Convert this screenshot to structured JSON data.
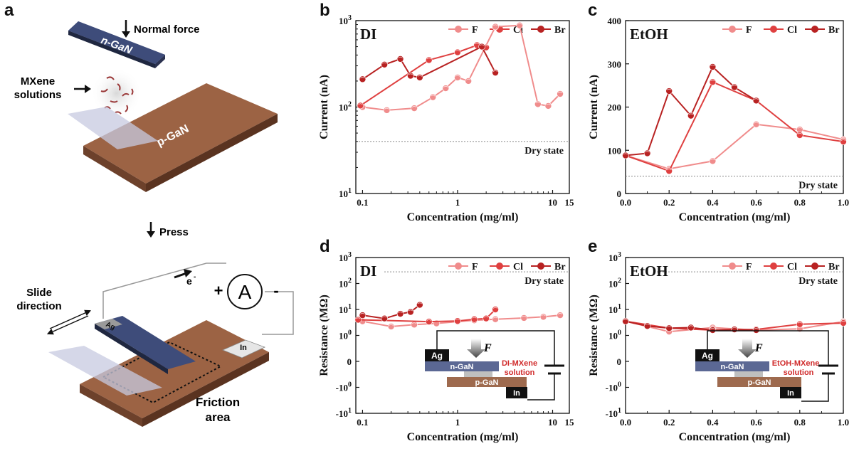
{
  "panel_labels": [
    "a",
    "b",
    "c",
    "d",
    "e"
  ],
  "schematic": {
    "normal_force": "Normal force",
    "mxene_solutions": [
      "MXene",
      "solutions"
    ],
    "n_gan": "n-GaN",
    "p_gan": "p-GaN",
    "press": "Press",
    "slide_direction": [
      "Slide",
      "direction"
    ],
    "electron": "e",
    "electron_sup": "-",
    "ammeter": "A",
    "plus": "+",
    "minus": "-",
    "ag": "Ag",
    "in": "In",
    "friction_area": [
      "Friction",
      "area"
    ]
  },
  "insets": {
    "d": {
      "ag": "Ag",
      "f": "F",
      "n_gan": "n-GaN",
      "p_gan": "p-GaN",
      "in": "In",
      "solution": [
        "DI-MXene",
        "solution"
      ]
    },
    "e": {
      "ag": "Ag",
      "f": "F",
      "n_gan": "n-GaN",
      "p_gan": "p-GaN",
      "in": "In",
      "solution": [
        "EtOH-MXene",
        "solution"
      ]
    }
  },
  "colors": {
    "F": "#f08c8c",
    "Cl": "#df4040",
    "Br": "#b82222",
    "dry": "#888888"
  },
  "chart_data": [
    {
      "panel": "b",
      "type": "line",
      "title": "DI",
      "xlabel": "Concentration (mg/ml)",
      "ylabel": "Current (nA)",
      "xscale": "log",
      "yscale": "log",
      "xlim": [
        0.085,
        15
      ],
      "ylim": [
        10,
        1000
      ],
      "xticks": [
        "0.1",
        "1",
        "10",
        "15"
      ],
      "yticks": [
        "10^1",
        "10^2",
        "10^3"
      ],
      "legend": [
        "F",
        "Cl",
        "Br"
      ],
      "legend_position": "top-right",
      "reference": {
        "label": "Dry state",
        "value": 40
      },
      "series": [
        {
          "name": "F",
          "x": [
            0.1,
            0.18,
            0.35,
            0.55,
            0.75,
            1.0,
            1.3,
            2.5,
            4.5,
            7.0,
            9.0,
            12.0
          ],
          "y": [
            100,
            92,
            97,
            130,
            165,
            220,
            200,
            850,
            880,
            108,
            103,
            142
          ]
        },
        {
          "name": "Cl",
          "x": [
            0.095,
            0.5,
            1.0,
            1.6,
            2.0
          ],
          "y": [
            104,
            350,
            430,
            520,
            490
          ]
        },
        {
          "name": "Br",
          "x": [
            0.1,
            0.17,
            0.25,
            0.32,
            0.4,
            1.8,
            2.5
          ],
          "y": [
            210,
            310,
            360,
            230,
            220,
            500,
            250
          ]
        }
      ]
    },
    {
      "panel": "c",
      "type": "line",
      "title": "EtOH",
      "xlabel": "Concentration (mg/ml)",
      "ylabel": "Current (nA)",
      "xscale": "linear",
      "yscale": "linear",
      "xlim": [
        0,
        1
      ],
      "ylim": [
        0,
        400
      ],
      "xticks": [
        "0.0",
        "0.2",
        "0.4",
        "0.6",
        "0.8",
        "1.0"
      ],
      "yticks": [
        "0",
        "100",
        "200",
        "300",
        "400"
      ],
      "legend": [
        "F",
        "Cl",
        "Br"
      ],
      "legend_position": "top-right",
      "reference": {
        "label": "Dry state",
        "value": 40
      },
      "series": [
        {
          "name": "F",
          "x": [
            0,
            0.2,
            0.4,
            0.6,
            0.8,
            1.0
          ],
          "y": [
            88,
            57,
            75,
            160,
            148,
            125
          ]
        },
        {
          "name": "Cl",
          "x": [
            0,
            0.2,
            0.4,
            0.6,
            0.8,
            1.0
          ],
          "y": [
            88,
            52,
            258,
            215,
            135,
            120
          ]
        },
        {
          "name": "Br",
          "x": [
            0,
            0.1,
            0.2,
            0.3,
            0.4,
            0.5,
            0.6
          ],
          "y": [
            88,
            93,
            237,
            180,
            293,
            246,
            215
          ]
        }
      ]
    },
    {
      "panel": "d",
      "type": "line",
      "title": "DI",
      "xlabel": "Concentration (mg/ml)",
      "ylabel": "Resistance (MΩ)",
      "xscale": "log",
      "yscale": "symlog",
      "xlim": [
        0.085,
        15
      ],
      "ylim": [
        -10,
        1000
      ],
      "xticks": [
        "0.1",
        "1",
        "10",
        "15"
      ],
      "yticks": [
        "10^3",
        "10^2",
        "10^1",
        "10^0",
        "0",
        "-10^0",
        "-10^1"
      ],
      "legend": [
        "F",
        "Cl",
        "Br"
      ],
      "legend_position": "top-right",
      "reference": {
        "label": "Dry state",
        "value": 280
      },
      "series": [
        {
          "name": "F",
          "x": [
            0.1,
            0.2,
            0.35,
            0.6,
            1.0,
            1.5,
            2.5,
            5.0,
            8.0,
            12.0
          ],
          "y": [
            3.5,
            2.2,
            2.6,
            2.9,
            3.4,
            3.8,
            4.2,
            4.7,
            5.2,
            6.0
          ]
        },
        {
          "name": "Cl",
          "x": [
            0.09,
            0.5,
            1.0,
            1.5,
            2.0,
            2.5
          ],
          "y": [
            4.0,
            3.4,
            3.6,
            4.2,
            4.5,
            10.0
          ]
        },
        {
          "name": "Br",
          "x": [
            0.1,
            0.17,
            0.25,
            0.32,
            0.4
          ],
          "y": [
            6.0,
            4.5,
            6.8,
            8.0,
            15.0
          ]
        }
      ]
    },
    {
      "panel": "e",
      "type": "line",
      "title": "EtOH",
      "xlabel": "Concentration (mg/ml)",
      "ylabel": "Resistance (MΩ)",
      "xscale": "linear",
      "yscale": "symlog",
      "xlim": [
        0,
        1
      ],
      "ylim": [
        -10,
        1000
      ],
      "xticks": [
        "0.0",
        "0.2",
        "0.4",
        "0.6",
        "0.8",
        "1.0"
      ],
      "yticks": [
        "10^3",
        "10^2",
        "10^1",
        "10^0",
        "0",
        "-10^0",
        "-10^1"
      ],
      "legend": [
        "F",
        "Cl",
        "Br"
      ],
      "legend_position": "top-right",
      "reference": {
        "label": "Dry state",
        "value": 280
      },
      "series": [
        {
          "name": "F",
          "x": [
            0,
            0.2,
            0.4,
            0.6,
            0.8,
            1.0
          ],
          "y": [
            3.5,
            1.4,
            2.0,
            1.6,
            1.8,
            3.4
          ]
        },
        {
          "name": "Cl",
          "x": [
            0,
            0.2,
            0.4,
            0.6,
            0.8,
            1.0
          ],
          "y": [
            3.5,
            1.9,
            1.6,
            1.7,
            2.7,
            3.0
          ]
        },
        {
          "name": "Br",
          "x": [
            0,
            0.1,
            0.2,
            0.3,
            0.4,
            0.5,
            0.6
          ],
          "y": [
            3.5,
            2.3,
            1.9,
            2.0,
            1.6,
            1.7,
            1.6
          ]
        }
      ]
    }
  ]
}
